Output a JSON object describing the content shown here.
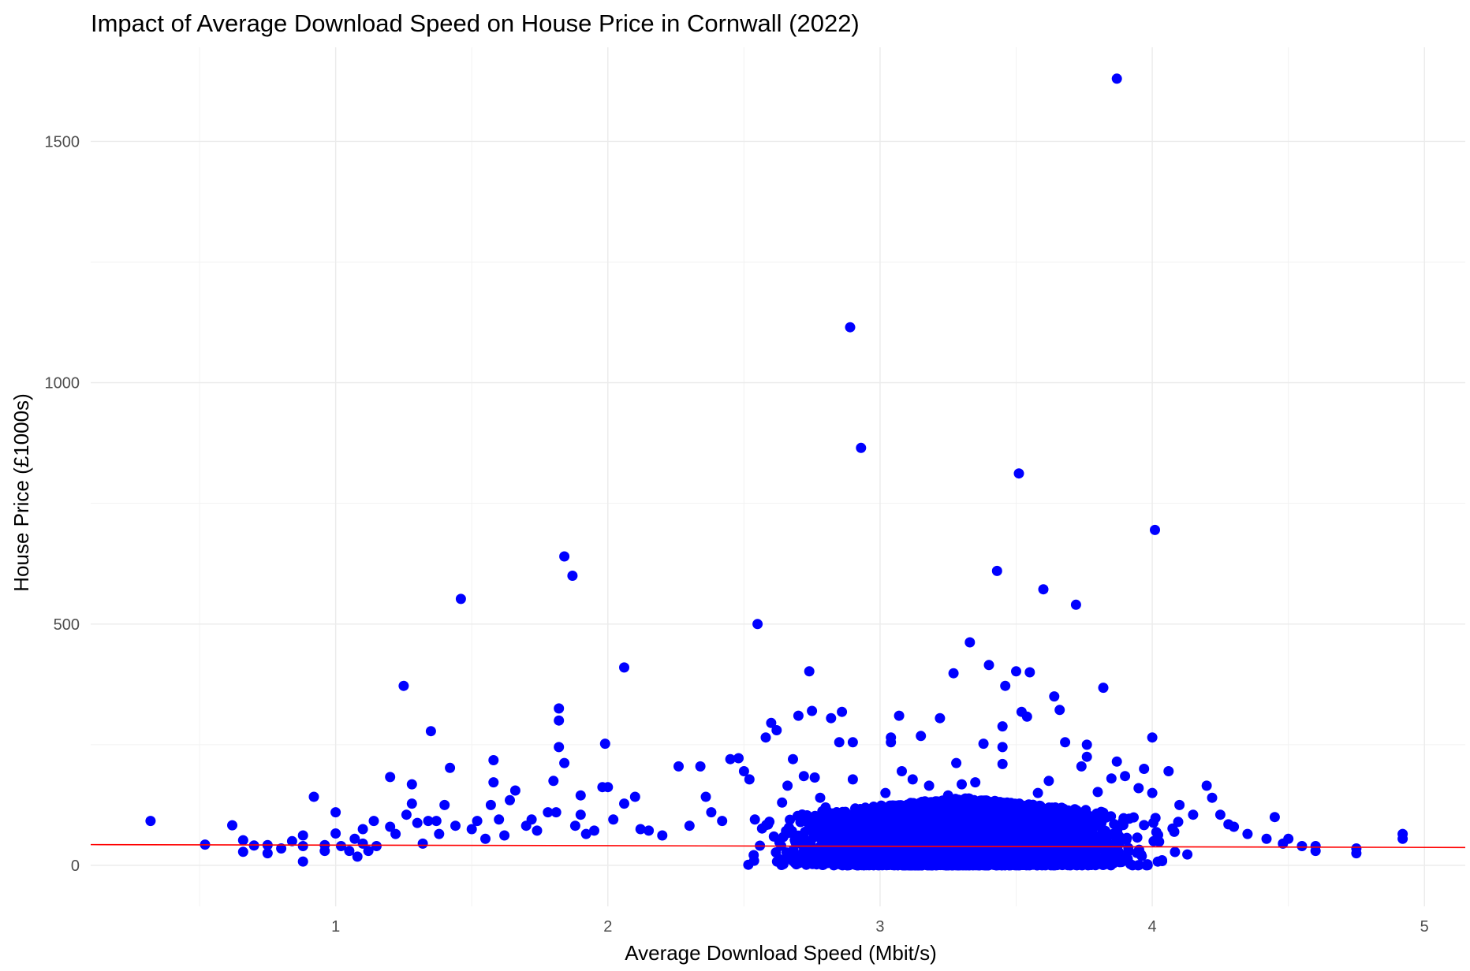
{
  "chart_data": {
    "type": "scatter",
    "title": "Impact of Average Download Speed on House Price in Cornwall (2022)",
    "xlabel": "Average Download Speed (Mbit/s)",
    "ylabel": "House Price (£1000s)",
    "xlim": [
      0.1,
      5.15
    ],
    "ylim": [
      -85,
      1695
    ],
    "x_ticks": [
      1,
      2,
      3,
      4,
      5
    ],
    "x_tick_labels": [
      "1",
      "2",
      "3",
      "4",
      "5"
    ],
    "y_ticks": [
      0,
      500,
      1000,
      1500
    ],
    "y_tick_labels": [
      "0",
      "500",
      "1000",
      "1500"
    ],
    "grid": true,
    "legend": "none",
    "colors": {
      "points": "#0000ff",
      "trend_line": "#ff0000"
    },
    "trend_line": {
      "x": [
        0.1,
        5.15
      ],
      "y": [
        43,
        37
      ]
    },
    "series": [
      {
        "points": [
          [
            0.32,
            92
          ],
          [
            0.52,
            43
          ],
          [
            0.62,
            83
          ],
          [
            0.66,
            52
          ],
          [
            0.66,
            28
          ],
          [
            0.7,
            41
          ],
          [
            0.75,
            42
          ],
          [
            0.75,
            25
          ],
          [
            0.8,
            35
          ],
          [
            0.84,
            50
          ],
          [
            0.88,
            62
          ],
          [
            0.88,
            40
          ],
          [
            0.88,
            8
          ],
          [
            0.92,
            142
          ],
          [
            0.96,
            42
          ],
          [
            0.96,
            30
          ],
          [
            1.0,
            110
          ],
          [
            1.0,
            66
          ],
          [
            1.02,
            40
          ],
          [
            1.05,
            30
          ],
          [
            1.07,
            55
          ],
          [
            1.08,
            18
          ],
          [
            1.1,
            75
          ],
          [
            1.1,
            45
          ],
          [
            1.12,
            30
          ],
          [
            1.14,
            92
          ],
          [
            1.15,
            40
          ],
          [
            1.2,
            183
          ],
          [
            1.2,
            80
          ],
          [
            1.22,
            65
          ],
          [
            1.25,
            372
          ],
          [
            1.26,
            105
          ],
          [
            1.28,
            168
          ],
          [
            1.28,
            128
          ],
          [
            1.3,
            88
          ],
          [
            1.32,
            45
          ],
          [
            1.34,
            92
          ],
          [
            1.35,
            278
          ],
          [
            1.37,
            92
          ],
          [
            1.38,
            65
          ],
          [
            1.4,
            125
          ],
          [
            1.42,
            202
          ],
          [
            1.44,
            82
          ],
          [
            1.46,
            552
          ],
          [
            1.5,
            75
          ],
          [
            1.52,
            92
          ],
          [
            1.55,
            55
          ],
          [
            1.57,
            125
          ],
          [
            1.58,
            218
          ],
          [
            1.58,
            172
          ],
          [
            1.6,
            95
          ],
          [
            1.62,
            62
          ],
          [
            1.64,
            135
          ],
          [
            1.66,
            155
          ],
          [
            1.7,
            82
          ],
          [
            1.72,
            95
          ],
          [
            1.74,
            72
          ],
          [
            1.78,
            110
          ],
          [
            1.8,
            175
          ],
          [
            1.81,
            110
          ],
          [
            1.82,
            325
          ],
          [
            1.82,
            300
          ],
          [
            1.82,
            245
          ],
          [
            1.84,
            640
          ],
          [
            1.84,
            212
          ],
          [
            1.87,
            600
          ],
          [
            1.88,
            82
          ],
          [
            1.9,
            145
          ],
          [
            1.9,
            105
          ],
          [
            1.92,
            65
          ],
          [
            1.95,
            72
          ],
          [
            1.98,
            162
          ],
          [
            1.99,
            252
          ],
          [
            2.0,
            162
          ],
          [
            2.02,
            95
          ],
          [
            2.06,
            410
          ],
          [
            2.06,
            128
          ],
          [
            2.1,
            142
          ],
          [
            2.12,
            75
          ],
          [
            2.15,
            72
          ],
          [
            2.2,
            62
          ],
          [
            2.26,
            205
          ],
          [
            2.3,
            82
          ],
          [
            2.34,
            205
          ],
          [
            2.36,
            142
          ],
          [
            2.38,
            110
          ],
          [
            2.42,
            92
          ],
          [
            2.45,
            220
          ],
          [
            2.48,
            222
          ],
          [
            2.5,
            195
          ],
          [
            2.52,
            178
          ],
          [
            2.54,
            95
          ],
          [
            2.55,
            500
          ],
          [
            2.58,
            265
          ],
          [
            2.6,
            295
          ],
          [
            2.62,
            280
          ],
          [
            2.64,
            130
          ],
          [
            2.66,
            165
          ],
          [
            2.68,
            220
          ],
          [
            2.7,
            310
          ],
          [
            2.72,
            185
          ],
          [
            2.74,
            402
          ],
          [
            2.75,
            320
          ],
          [
            2.76,
            182
          ],
          [
            2.78,
            140
          ],
          [
            2.8,
            120
          ],
          [
            2.82,
            305
          ],
          [
            2.86,
            318
          ],
          [
            2.85,
            255
          ],
          [
            2.9,
            255
          ],
          [
            2.9,
            178
          ],
          [
            2.89,
            1115
          ],
          [
            2.93,
            865
          ],
          [
            2.96,
            112
          ],
          [
            2.98,
            95
          ],
          [
            3.02,
            150
          ],
          [
            3.04,
            265
          ],
          [
            3.04,
            255
          ],
          [
            3.07,
            310
          ],
          [
            3.08,
            195
          ],
          [
            3.12,
            178
          ],
          [
            3.15,
            268
          ],
          [
            3.18,
            165
          ],
          [
            3.2,
            130
          ],
          [
            3.22,
            305
          ],
          [
            3.25,
            145
          ],
          [
            3.27,
            398
          ],
          [
            3.28,
            212
          ],
          [
            3.3,
            168
          ],
          [
            3.33,
            462
          ],
          [
            3.35,
            172
          ],
          [
            3.38,
            252
          ],
          [
            3.4,
            415
          ],
          [
            3.43,
            610
          ],
          [
            3.45,
            288
          ],
          [
            3.45,
            245
          ],
          [
            3.45,
            210
          ],
          [
            3.46,
            372
          ],
          [
            3.5,
            402
          ],
          [
            3.51,
            812
          ],
          [
            3.52,
            318
          ],
          [
            3.54,
            308
          ],
          [
            3.55,
            400
          ],
          [
            3.58,
            150
          ],
          [
            3.6,
            572
          ],
          [
            3.62,
            175
          ],
          [
            3.64,
            350
          ],
          [
            3.66,
            322
          ],
          [
            3.68,
            255
          ],
          [
            3.72,
            540
          ],
          [
            3.74,
            205
          ],
          [
            3.76,
            250
          ],
          [
            3.76,
            225
          ],
          [
            3.8,
            152
          ],
          [
            3.82,
            368
          ],
          [
            3.85,
            180
          ],
          [
            3.87,
            215
          ],
          [
            3.87,
            1630
          ],
          [
            3.9,
            185
          ],
          [
            3.95,
            160
          ],
          [
            3.97,
            200
          ],
          [
            4.0,
            150
          ],
          [
            4.0,
            265
          ],
          [
            4.01,
            695
          ],
          [
            4.06,
            195
          ],
          [
            4.1,
            125
          ],
          [
            4.15,
            105
          ],
          [
            4.2,
            165
          ],
          [
            4.22,
            140
          ],
          [
            4.25,
            105
          ],
          [
            4.28,
            85
          ],
          [
            4.3,
            80
          ],
          [
            4.35,
            65
          ],
          [
            4.42,
            55
          ],
          [
            4.45,
            100
          ],
          [
            4.48,
            45
          ],
          [
            4.5,
            55
          ],
          [
            4.55,
            40
          ],
          [
            4.6,
            40
          ],
          [
            4.6,
            30
          ],
          [
            4.75,
            35
          ],
          [
            4.75,
            25
          ],
          [
            4.92,
            65
          ],
          [
            4.92,
            55
          ]
        ]
      }
    ],
    "dense_cluster": {
      "x_range": [
        1.0,
        4.62
      ],
      "x_peak": 3.3,
      "y_min": 0,
      "y_max_near_peak": 140
    }
  }
}
